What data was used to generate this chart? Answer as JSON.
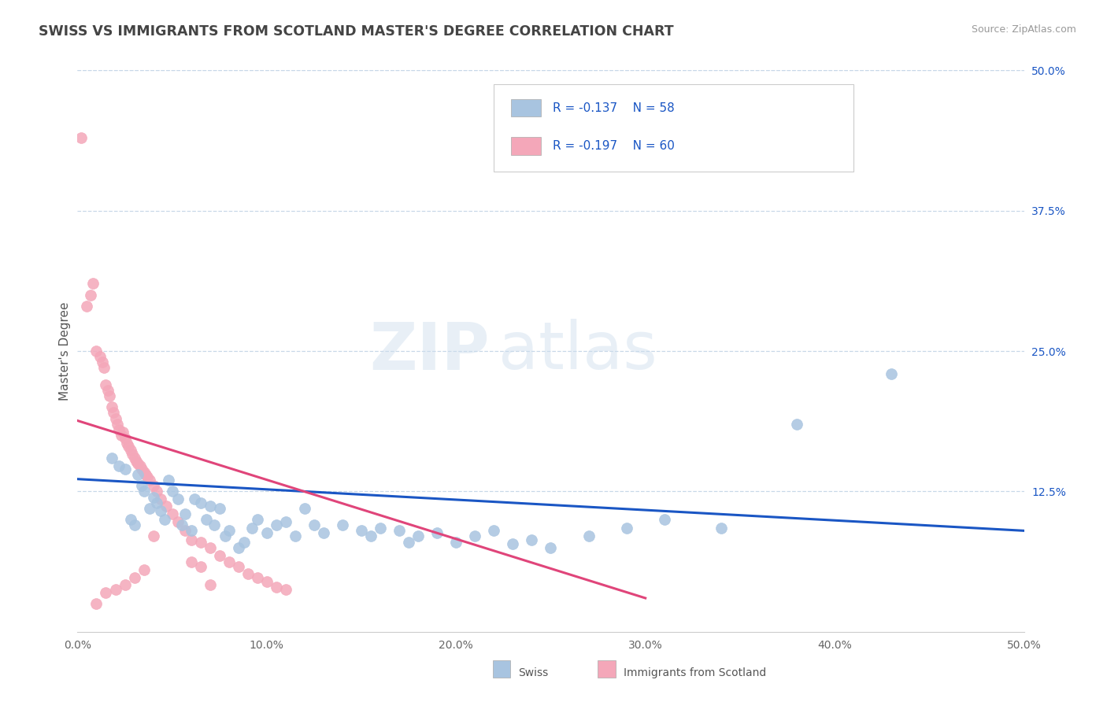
{
  "title": "SWISS VS IMMIGRANTS FROM SCOTLAND MASTER'S DEGREE CORRELATION CHART",
  "source_text": "Source: ZipAtlas.com",
  "ylabel": "Master's Degree",
  "x_min": 0.0,
  "x_max": 0.5,
  "y_min": 0.0,
  "y_max": 0.5,
  "x_ticks": [
    0.0,
    0.1,
    0.2,
    0.3,
    0.4,
    0.5
  ],
  "x_tick_labels": [
    "0.0%",
    "10.0%",
    "20.0%",
    "30.0%",
    "40.0%",
    "50.0%"
  ],
  "y_ticks_right": [
    0.125,
    0.25,
    0.375,
    0.5
  ],
  "y_tick_labels_right": [
    "12.5%",
    "25.0%",
    "37.5%",
    "50.0%"
  ],
  "swiss_color": "#a8c4e0",
  "scotland_color": "#f4a7b9",
  "trend_blue": "#1a56c4",
  "trend_pink": "#e0457a",
  "background_color": "#ffffff",
  "grid_color": "#c8d8e8",
  "title_color": "#444444",
  "swiss_R": "-0.137",
  "swiss_N": "58",
  "scotland_R": "-0.197",
  "scotland_N": "60",
  "swiss_scatter_x": [
    0.018,
    0.022,
    0.025,
    0.028,
    0.03,
    0.032,
    0.034,
    0.035,
    0.038,
    0.04,
    0.042,
    0.044,
    0.046,
    0.048,
    0.05,
    0.053,
    0.055,
    0.057,
    0.06,
    0.062,
    0.065,
    0.068,
    0.07,
    0.072,
    0.075,
    0.078,
    0.08,
    0.085,
    0.088,
    0.092,
    0.095,
    0.1,
    0.105,
    0.11,
    0.115,
    0.12,
    0.125,
    0.13,
    0.14,
    0.15,
    0.155,
    0.16,
    0.17,
    0.175,
    0.18,
    0.19,
    0.2,
    0.21,
    0.22,
    0.23,
    0.24,
    0.25,
    0.27,
    0.29,
    0.31,
    0.34,
    0.38,
    0.43
  ],
  "swiss_scatter_y": [
    0.155,
    0.148,
    0.145,
    0.1,
    0.095,
    0.14,
    0.13,
    0.125,
    0.11,
    0.12,
    0.115,
    0.108,
    0.1,
    0.135,
    0.125,
    0.118,
    0.095,
    0.105,
    0.09,
    0.118,
    0.115,
    0.1,
    0.112,
    0.095,
    0.11,
    0.085,
    0.09,
    0.075,
    0.08,
    0.092,
    0.1,
    0.088,
    0.095,
    0.098,
    0.085,
    0.11,
    0.095,
    0.088,
    0.095,
    0.09,
    0.085,
    0.092,
    0.09,
    0.08,
    0.085,
    0.088,
    0.08,
    0.085,
    0.09,
    0.078,
    0.082,
    0.075,
    0.085,
    0.092,
    0.1,
    0.092,
    0.185,
    0.23
  ],
  "scotland_scatter_x": [
    0.002,
    0.005,
    0.007,
    0.008,
    0.01,
    0.012,
    0.013,
    0.014,
    0.015,
    0.016,
    0.017,
    0.018,
    0.019,
    0.02,
    0.021,
    0.022,
    0.023,
    0.024,
    0.025,
    0.026,
    0.027,
    0.028,
    0.029,
    0.03,
    0.031,
    0.032,
    0.033,
    0.034,
    0.035,
    0.036,
    0.037,
    0.038,
    0.04,
    0.042,
    0.044,
    0.047,
    0.05,
    0.053,
    0.057,
    0.06,
    0.065,
    0.07,
    0.075,
    0.08,
    0.085,
    0.09,
    0.095,
    0.1,
    0.105,
    0.11,
    0.06,
    0.065,
    0.07,
    0.04,
    0.035,
    0.03,
    0.025,
    0.02,
    0.015,
    0.01
  ],
  "scotland_scatter_y": [
    0.44,
    0.29,
    0.3,
    0.31,
    0.25,
    0.245,
    0.24,
    0.235,
    0.22,
    0.215,
    0.21,
    0.2,
    0.195,
    0.19,
    0.185,
    0.18,
    0.175,
    0.178,
    0.172,
    0.168,
    0.165,
    0.162,
    0.158,
    0.155,
    0.152,
    0.15,
    0.148,
    0.145,
    0.142,
    0.14,
    0.138,
    0.135,
    0.13,
    0.125,
    0.118,
    0.112,
    0.105,
    0.098,
    0.09,
    0.082,
    0.08,
    0.075,
    0.068,
    0.062,
    0.058,
    0.052,
    0.048,
    0.045,
    0.04,
    0.038,
    0.062,
    0.058,
    0.042,
    0.085,
    0.055,
    0.048,
    0.042,
    0.038,
    0.035,
    0.025
  ],
  "blue_trend": [
    0.0,
    0.5,
    0.136,
    0.09
  ],
  "pink_trend": [
    0.0,
    0.3,
    0.188,
    0.03
  ]
}
